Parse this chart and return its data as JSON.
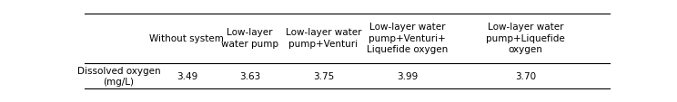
{
  "col_headers": [
    "",
    "Without system",
    "Low-layer\nwater pump",
    "Low-layer water\npump+Venturi",
    "Low-layer water\npump+Venturi+\nLiquefide oxygen",
    "Low-layer water\npump+Liquefide\noxygen"
  ],
  "row_label": "Dissolved oxygen\n(mg/L)",
  "values": [
    "3.49",
    "3.63",
    "3.75",
    "3.99",
    "3.70"
  ],
  "bg_color": "#ffffff",
  "text_color": "#000000",
  "font_size": 7.5,
  "figsize": [
    7.44,
    1.14
  ],
  "dpi": 100
}
